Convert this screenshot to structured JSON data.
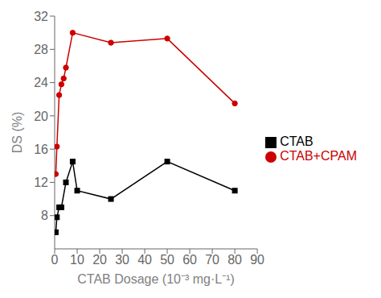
{
  "chart_data": {
    "type": "line",
    "xlabel": "CTAB  Dosage (10⁻³ mg·L⁻¹)",
    "ylabel": "DS (%)",
    "xlim": [
      0,
      90
    ],
    "ylim": [
      4,
      32
    ],
    "xticks": [
      0,
      10,
      20,
      30,
      40,
      50,
      60,
      70,
      80,
      90
    ],
    "yticks": [
      8,
      12,
      16,
      20,
      24,
      28,
      32
    ],
    "grid": false,
    "legend": "center right",
    "series": [
      {
        "name": "CTAB",
        "color": "#000000",
        "marker": "square",
        "x": [
          0.5,
          1,
          2,
          3,
          5,
          8,
          10,
          25,
          50,
          80
        ],
        "values": [
          6.0,
          7.8,
          9.0,
          9.0,
          12.0,
          14.5,
          11.0,
          10.0,
          14.5,
          11.0
        ]
      },
      {
        "name": "CTAB+CPAM",
        "color": "#cc0000",
        "marker": "circle",
        "x": [
          0.5,
          1,
          2,
          3,
          4,
          5,
          8,
          25,
          50,
          80
        ],
        "values": [
          13.0,
          16.3,
          22.5,
          23.8,
          24.5,
          25.8,
          30.0,
          28.8,
          29.3,
          21.5
        ]
      }
    ]
  }
}
